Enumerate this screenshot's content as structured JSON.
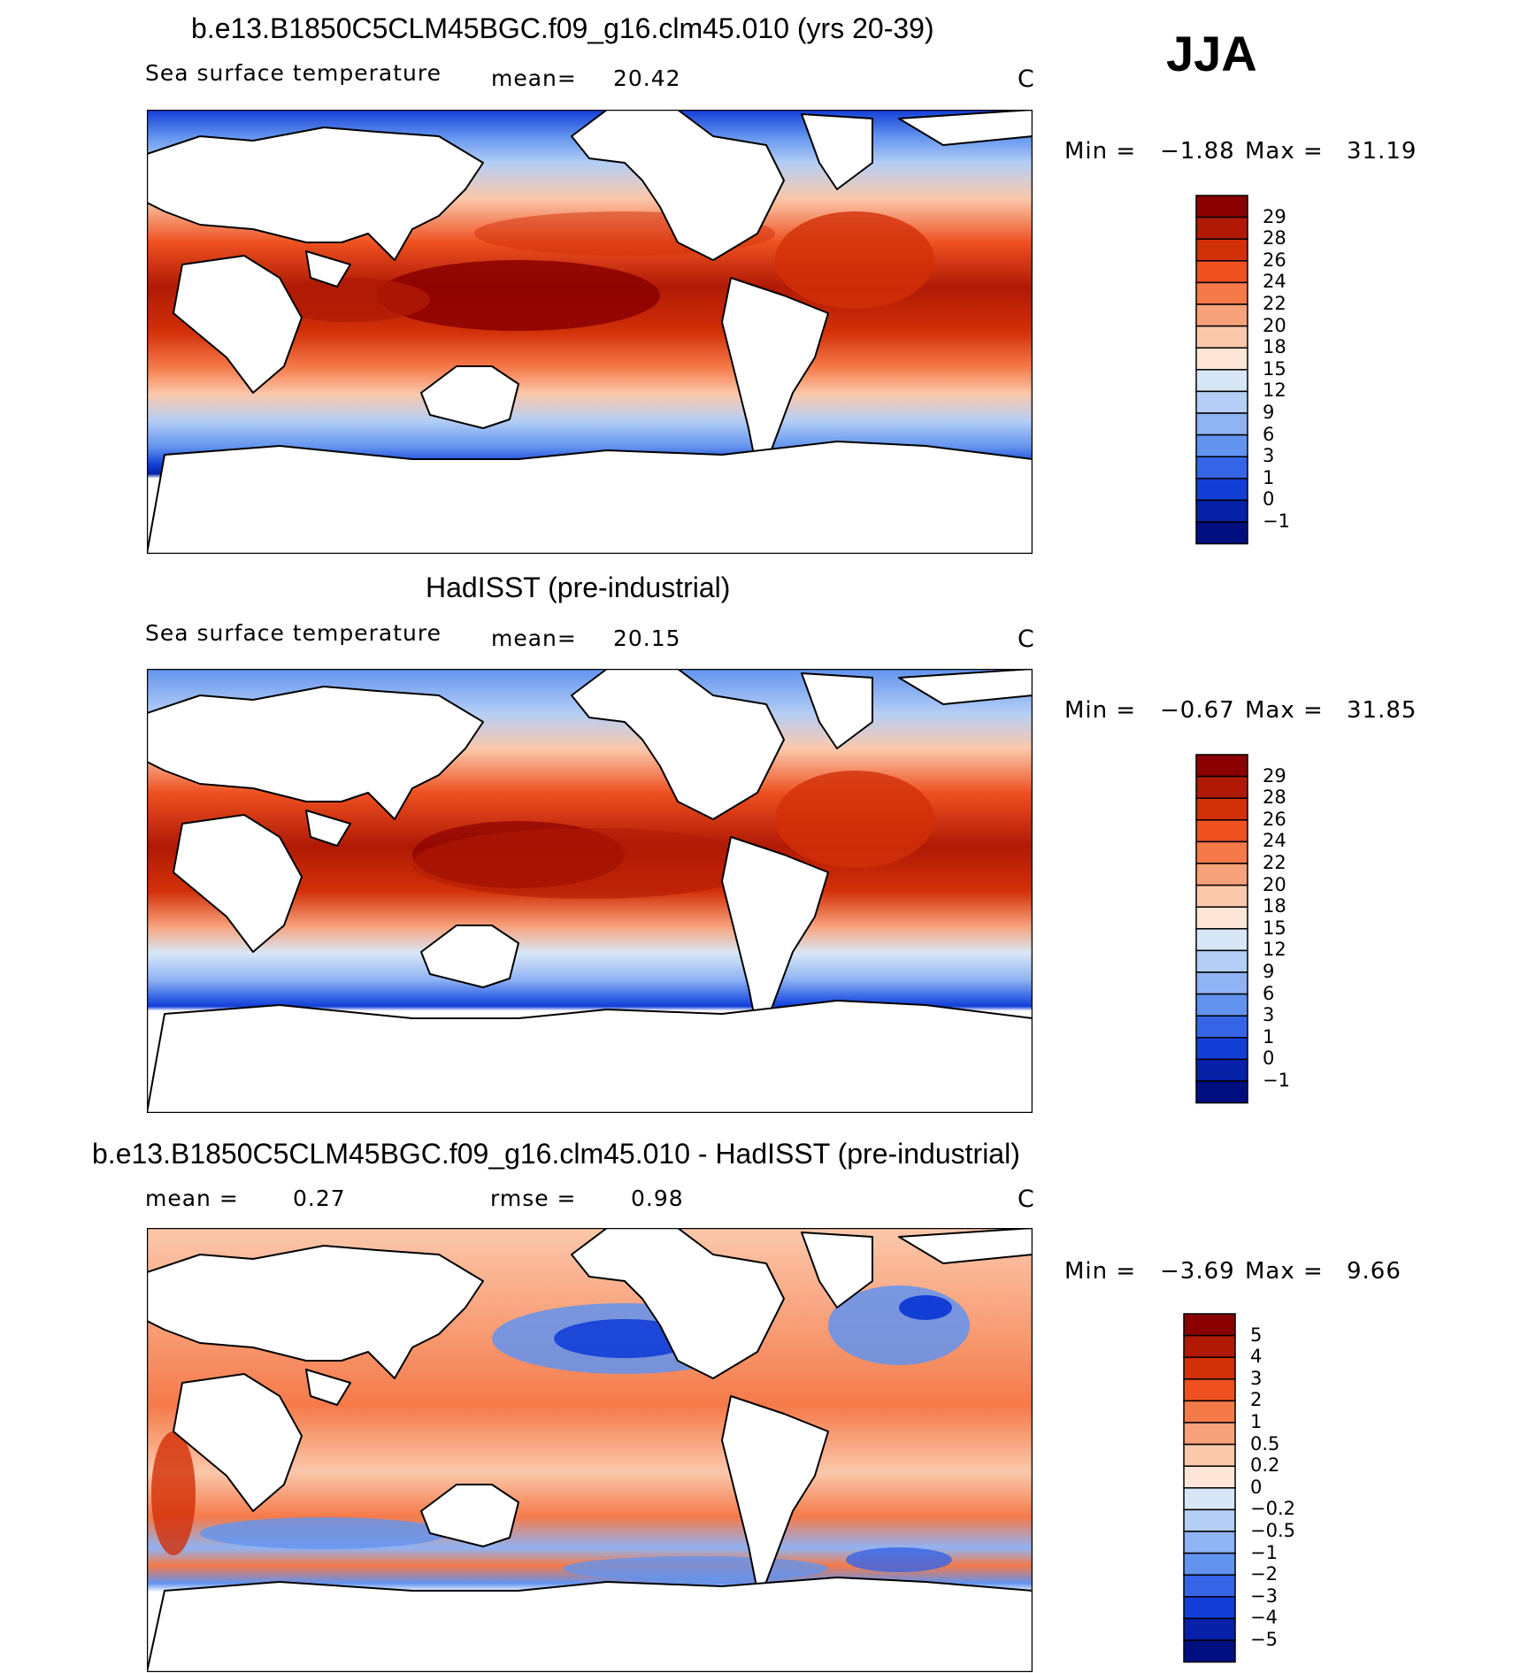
{
  "season": "JJA",
  "chart_data": [
    {
      "type": "heatmap",
      "id": "model",
      "title": "b.e13.B1850C5CLM45BGC.f09_g16.clm45.010 (yrs 20-39)",
      "variable": "Sea surface temperature",
      "mean_label": "mean=",
      "mean_value": "20.42",
      "units": "C",
      "min_label": "Min =",
      "min_value": "−1.88",
      "max_label": "Max =",
      "max_value": "31.19",
      "levels": [
        "29",
        "28",
        "26",
        "24",
        "22",
        "20",
        "18",
        "15",
        "12",
        "9",
        "6",
        "3",
        "1",
        "0",
        "−1"
      ],
      "colors": [
        "#8a0000",
        "#b01a05",
        "#d23008",
        "#ee5020",
        "#f57a4a",
        "#f8a27c",
        "#fbc8ab",
        "#fde6d8",
        "#d7e7f7",
        "#b4cef5",
        "#8fb3f3",
        "#6293ef",
        "#3565e6",
        "#123ed6",
        "#0620a8",
        "#000f80"
      ]
    },
    {
      "type": "heatmap",
      "id": "obs",
      "title": "HadISST (pre-industrial)",
      "variable": "Sea surface temperature",
      "mean_label": "mean=",
      "mean_value": "20.15",
      "units": "C",
      "min_label": "Min =",
      "min_value": "−0.67",
      "max_label": "Max =",
      "max_value": "31.85",
      "levels": [
        "29",
        "28",
        "26",
        "24",
        "22",
        "20",
        "18",
        "15",
        "12",
        "9",
        "6",
        "3",
        "1",
        "0",
        "−1"
      ],
      "colors": [
        "#8a0000",
        "#b01a05",
        "#d23008",
        "#ee5020",
        "#f57a4a",
        "#f8a27c",
        "#fbc8ab",
        "#fde6d8",
        "#d7e7f7",
        "#b4cef5",
        "#8fb3f3",
        "#6293ef",
        "#3565e6",
        "#123ed6",
        "#0620a8",
        "#000f80"
      ]
    },
    {
      "type": "heatmap",
      "id": "diff",
      "title": "b.e13.B1850C5CLM45BGC.f09_g16.clm45.010 - HadISST (pre-industrial)",
      "mean_label": "mean =",
      "mean_value": "0.27",
      "rmse_label": "rmse =",
      "rmse_value": "0.98",
      "units": "C",
      "min_label": "Min =",
      "min_value": "−3.69",
      "max_label": "Max =",
      "max_value": "9.66",
      "levels": [
        "5",
        "4",
        "3",
        "2",
        "1",
        "0.5",
        "0.2",
        "0",
        "−0.2",
        "−0.5",
        "−1",
        "−2",
        "−3",
        "−4",
        "−5"
      ],
      "colors": [
        "#8a0000",
        "#b01a05",
        "#d23008",
        "#ee5020",
        "#f57a4a",
        "#f8a27c",
        "#fbc8ab",
        "#fde6d8",
        "#d7e7f7",
        "#b4cef5",
        "#8fb3f3",
        "#6293ef",
        "#3565e6",
        "#123ed6",
        "#0620a8",
        "#000f80"
      ]
    }
  ]
}
